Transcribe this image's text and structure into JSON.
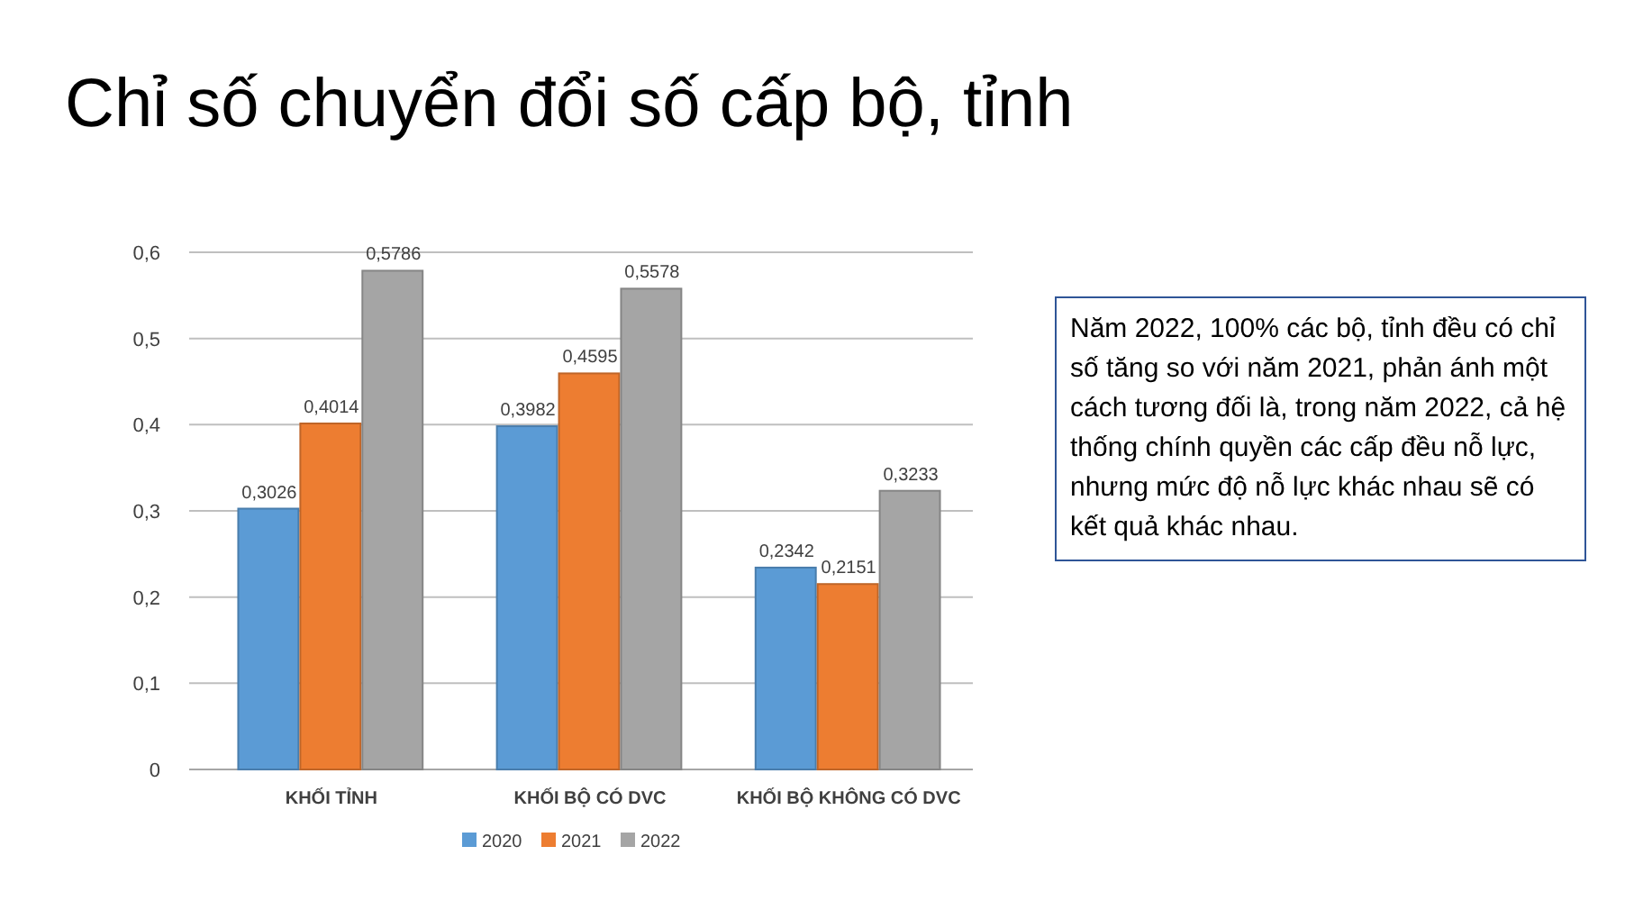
{
  "chart_data": {
    "type": "bar",
    "title": "Chỉ số chuyển đổi số cấp bộ, tỉnh",
    "categories": [
      "KHỐI TỈNH",
      "KHỐI BỘ CÓ DVC",
      "KHỐI BỘ KHÔNG CÓ DVC"
    ],
    "series": [
      {
        "name": "2020",
        "color": "#5b9bd5",
        "values": [
          0.3026,
          0.3982,
          0.2342
        ],
        "value_labels": [
          "0,3026",
          "0,3982",
          "0,2342"
        ]
      },
      {
        "name": "2021",
        "color": "#ed7d31",
        "values": [
          0.4014,
          0.4595,
          0.2151
        ],
        "value_labels": [
          "0,4014",
          "0,4595",
          "0,2151"
        ]
      },
      {
        "name": "2022",
        "color": "#a5a5a5",
        "values": [
          0.5786,
          0.5578,
          0.3233
        ],
        "value_labels": [
          "0,5786",
          "0,5578",
          "0,3233"
        ]
      }
    ],
    "ylim": [
      0,
      0.6
    ],
    "yticks": [
      0,
      {
        "value": 0.1,
        "label": "0,1"
      },
      {
        "value": 0.2,
        "label": "0,2"
      },
      {
        "value": 0.3,
        "label": "0,3"
      },
      {
        "value": 0.4,
        "label": "0,4"
      },
      {
        "value": 0.5,
        "label": "0,5"
      },
      {
        "value": 0.6,
        "label": "0,6"
      }
    ],
    "grid": "y",
    "legend": "bottom",
    "annotations": [
      "Năm 2022, 100% các bộ, tỉnh đều có chỉ số tăng so với năm 2021, phản ánh một cách tương đối là, trong năm 2022, cả hệ thống chính quyền các cấp đều nỗ lực, nhưng mức độ nỗ lực khác nhau sẽ có kết quả khác nhau."
    ]
  }
}
